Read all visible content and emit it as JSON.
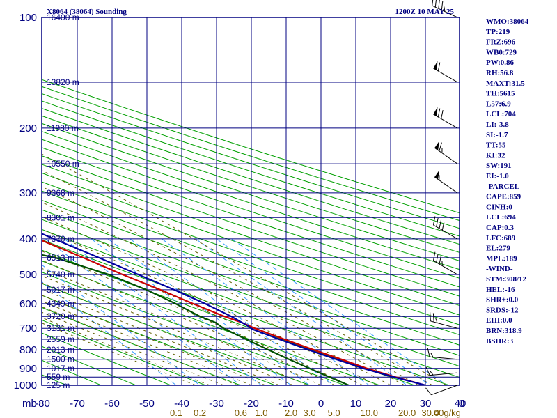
{
  "header": {
    "station": "X8064 (38064) Sounding",
    "time": "1200Z 10 MAY 25"
  },
  "colors": {
    "frame": "#000080",
    "isotherm": "#000080",
    "isobar": "#000080",
    "dry_adiabat": "#00a000",
    "moist_adiabat": "#606000",
    "mixing_ratio": "#3399ff",
    "temperature": "#cc0000",
    "dewpoint": "#005000",
    "parcel": "#0000a0",
    "wind_barb": "#000000",
    "mixing_ratio_label": "#7a5a00"
  },
  "axis": {
    "unit_label": "mb",
    "pressure_ticks": [
      "100",
      "200",
      "300",
      "400",
      "500",
      "600",
      "700",
      "800",
      "900",
      "1000"
    ],
    "temperature_ticks": [
      "-80",
      "-70",
      "-60",
      "-50",
      "-40",
      "-30",
      "-20",
      "-10",
      "0",
      "10",
      "20",
      "30",
      "40"
    ],
    "height_labels": [
      {
        "p": 100,
        "text": "16400 m"
      },
      {
        "p": 150,
        "text": "13820 m"
      },
      {
        "p": 200,
        "text": "11980 m"
      },
      {
        "p": 250,
        "text": "10550 m"
      },
      {
        "p": 300,
        "text": "9368 m"
      },
      {
        "p": 350,
        "text": "8301 m"
      },
      {
        "p": 400,
        "text": "7370 m"
      },
      {
        "p": 450,
        "text": "6513 m"
      },
      {
        "p": 500,
        "text": "5740 m"
      },
      {
        "p": 550,
        "text": "5017 m"
      },
      {
        "p": 600,
        "text": "4349 m"
      },
      {
        "p": 650,
        "text": "3720 m"
      },
      {
        "p": 700,
        "text": "3131 m"
      },
      {
        "p": 750,
        "text": "2559 m"
      },
      {
        "p": 800,
        "text": "2013 m"
      },
      {
        "p": 850,
        "text": "1500 m"
      },
      {
        "p": 900,
        "text": "1017 m"
      },
      {
        "p": 950,
        "text": "559 m"
      },
      {
        "p": 1000,
        "text": "125 m"
      }
    ],
    "mixing_ratio_labels": [
      "0.1",
      "0.2",
      "0.6",
      "1.0",
      "2.0",
      "3.0",
      "5.0",
      "10.0",
      "20.0",
      "30.0",
      "40g/kg"
    ],
    "wind_axis_zero": "0"
  },
  "chart_data": {
    "type": "line",
    "title": "X8064 (38064) Sounding",
    "subtitle": "1200Z 10 MAY 25",
    "xlabel": "",
    "ylabel": "mb",
    "y_scale": "log",
    "ylim": [
      1000,
      100
    ],
    "xlim": [
      -80,
      40
    ],
    "series": [
      {
        "key": "temperature",
        "points": [
          [
            1000,
            30
          ],
          [
            950,
            24
          ],
          [
            900,
            18.5
          ],
          [
            850,
            14
          ],
          [
            800,
            9
          ],
          [
            750,
            4
          ],
          [
            700,
            -1
          ],
          [
            675,
            -3
          ],
          [
            650,
            -6
          ],
          [
            600,
            -11
          ],
          [
            550,
            -16
          ],
          [
            500,
            -22
          ],
          [
            450,
            -28
          ],
          [
            400,
            -35
          ],
          [
            350,
            -42
          ],
          [
            300,
            -48
          ],
          [
            250,
            -53
          ],
          [
            225,
            -55
          ],
          [
            200,
            -59
          ],
          [
            180,
            -59
          ],
          [
            160,
            -58
          ],
          [
            150,
            -57
          ],
          [
            130,
            -57
          ],
          [
            120,
            -57
          ],
          [
            100,
            -58
          ]
        ]
      },
      {
        "key": "dewpoint",
        "points": [
          [
            1000,
            8
          ],
          [
            950,
            5
          ],
          [
            900,
            2
          ],
          [
            850,
            -1
          ],
          [
            800,
            -4
          ],
          [
            750,
            -7
          ],
          [
            700,
            -10
          ],
          [
            675,
            -10.5
          ],
          [
            650,
            -13
          ],
          [
            600,
            -16
          ],
          [
            550,
            -20
          ],
          [
            500,
            -26
          ],
          [
            450,
            -36
          ],
          [
            425,
            -46
          ],
          [
            400,
            -43
          ],
          [
            350,
            -53
          ],
          [
            320,
            -55
          ],
          [
            300,
            -58
          ],
          [
            275,
            -62
          ],
          [
            250,
            -66
          ],
          [
            225,
            -69
          ],
          [
            200,
            -70
          ],
          [
            180,
            -75
          ],
          [
            160,
            -80
          ]
        ]
      },
      {
        "key": "parcel",
        "points": [
          [
            1000,
            30
          ],
          [
            950,
            23.5
          ],
          [
            900,
            17.5
          ],
          [
            850,
            12.5
          ],
          [
            800,
            7.5
          ],
          [
            750,
            2.5
          ],
          [
            704,
            -2
          ],
          [
            689,
            -2.3
          ],
          [
            650,
            -4
          ],
          [
            600,
            -7.5
          ],
          [
            550,
            -12
          ],
          [
            500,
            -17.5
          ],
          [
            450,
            -23.5
          ],
          [
            400,
            -30.5
          ],
          [
            350,
            -38
          ],
          [
            300,
            -46.5
          ],
          [
            279,
            -50.5
          ],
          [
            250,
            -57
          ],
          [
            200,
            -67
          ],
          [
            150,
            -80
          ],
          [
            120,
            -88
          ]
        ]
      }
    ],
    "wind_barbs": [
      {
        "p": 1000,
        "dir": 250,
        "spd": 10
      },
      {
        "p": 925,
        "dir": 265,
        "spd": 15
      },
      {
        "p": 850,
        "dir": 275,
        "spd": 15
      },
      {
        "p": 700,
        "dir": 285,
        "spd": 25
      },
      {
        "p": 500,
        "dir": 300,
        "spd": 35
      },
      {
        "p": 400,
        "dir": 300,
        "spd": 40
      },
      {
        "p": 300,
        "dir": 305,
        "spd": 55
      },
      {
        "p": 250,
        "dir": 305,
        "spd": 65
      },
      {
        "p": 200,
        "dir": 300,
        "spd": 70
      },
      {
        "p": 150,
        "dir": 300,
        "spd": 60
      },
      {
        "p": 100,
        "dir": 295,
        "spd": 45
      }
    ],
    "grid": true,
    "legend": "none"
  },
  "indices": [
    "WMO:38064",
    "TP:219",
    "FRZ:696",
    "WB0:729",
    "PW:0.86",
    "RH:56.8",
    "MAXT:31.5",
    "TH:5615",
    "L57:6.9",
    "LCL:704",
    "LI:-3.8",
    "SI:-1.7",
    "TT:55",
    "KI:32",
    "SW:191",
    "EI:-1.0",
    "-PARCEL-",
    "CAPE:859",
    "CINH:0",
    "LCL:694",
    "CAP:0.3",
    "LFC:689",
    "EL:279",
    "MPL:189",
    "-WIND-",
    "STM:308/12",
    "HEL:-16",
    "SHR+:0.0",
    "SRDS:-12",
    "EHI:0.0",
    "BRN:318.9",
    "BSHR:3"
  ]
}
